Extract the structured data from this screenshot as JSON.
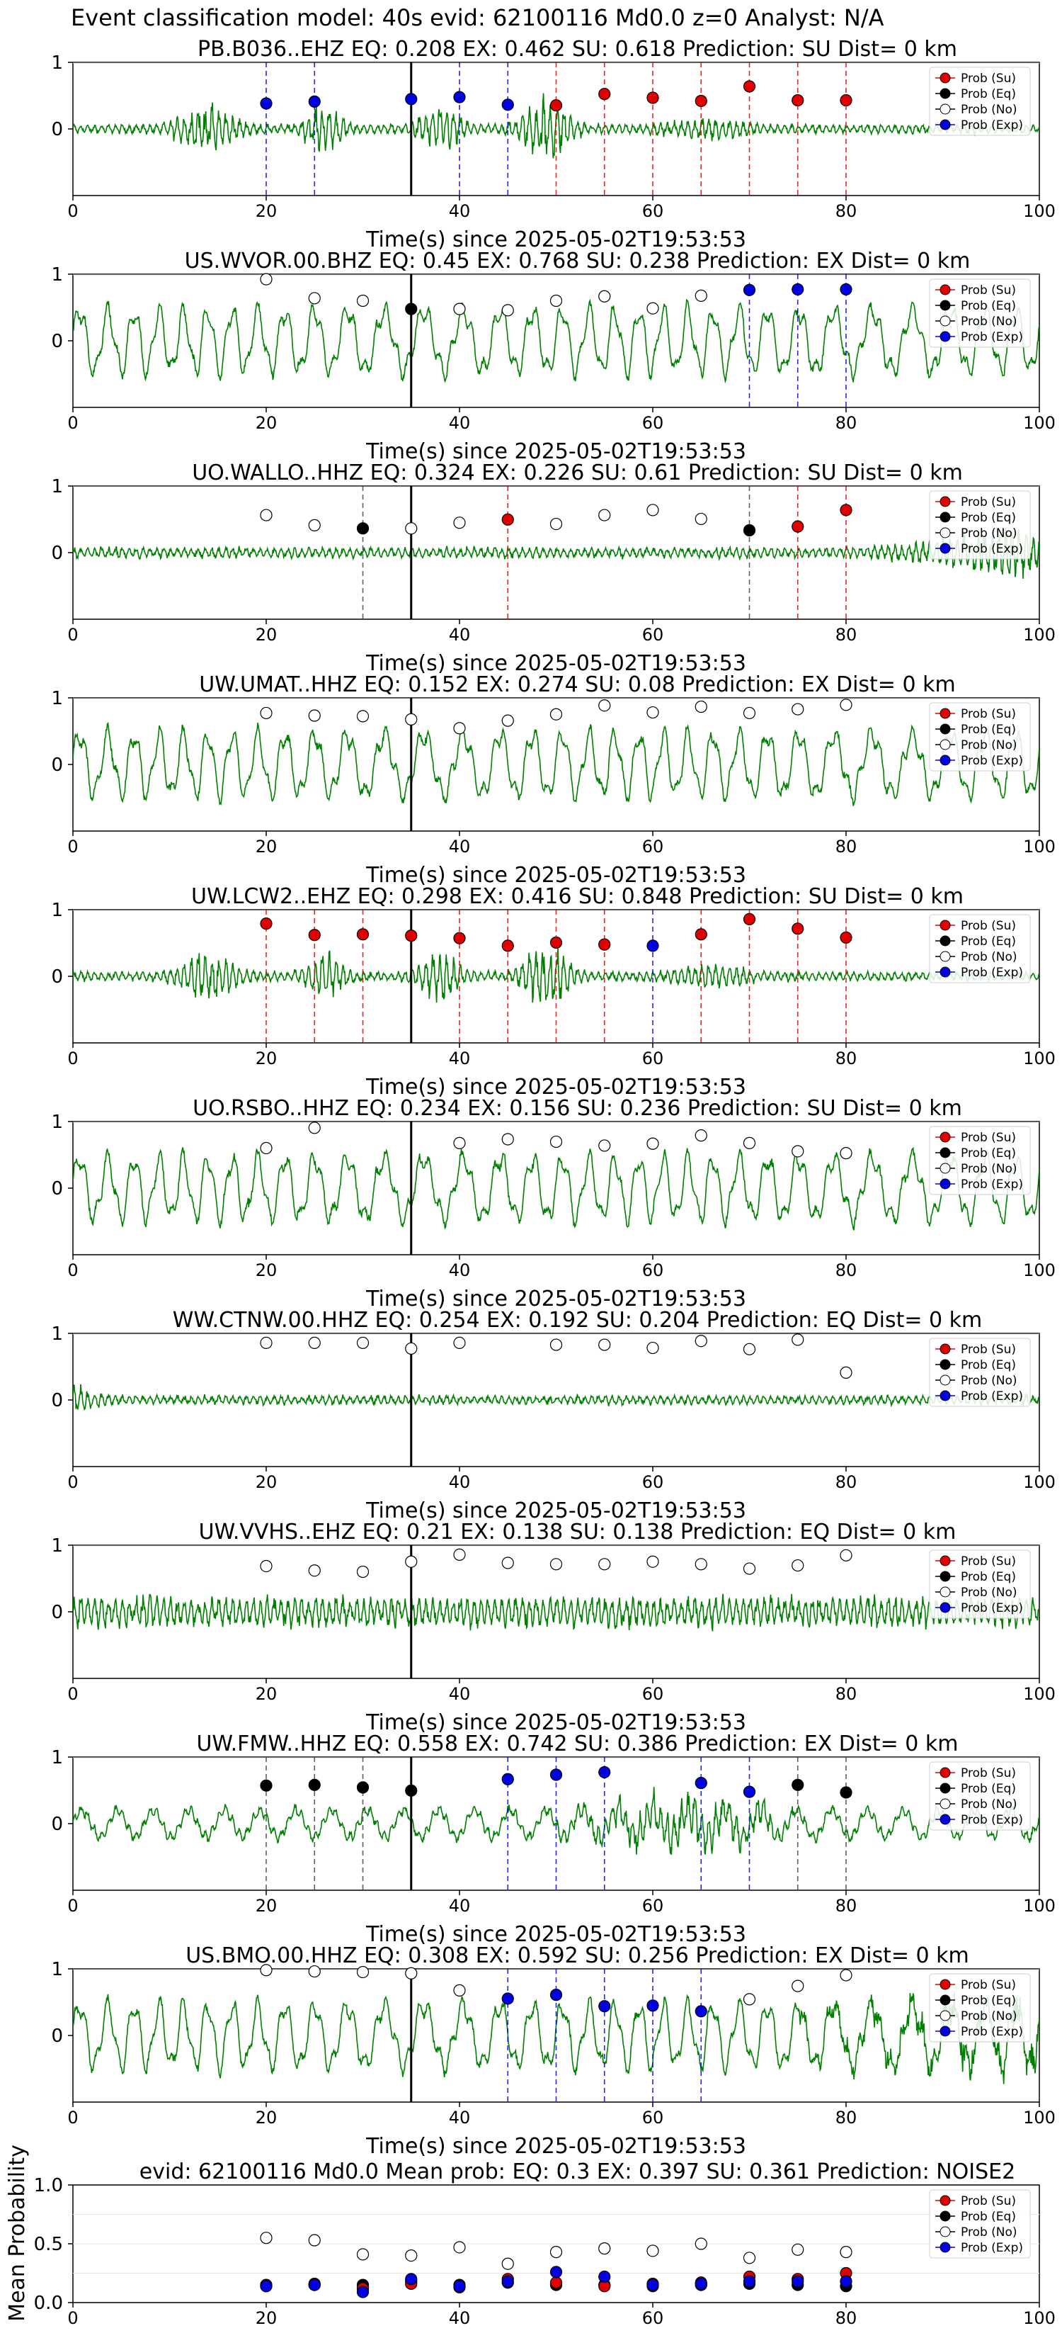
{
  "suptitle": "Event classification model: 40s evid: 62100116 Md0.0 z=0 Analyst: N/A",
  "chart_data": {
    "type": "line",
    "xlabel": "Time(s) since 2025-05-02T19:53:53",
    "xlim": [
      0,
      100
    ],
    "ylim": [
      -1,
      1
    ],
    "xticks": [
      0,
      20,
      40,
      60,
      80,
      100
    ],
    "yticks": [
      0,
      1
    ],
    "arrival_time": 35,
    "window_times": [
      20,
      25,
      30,
      35,
      40,
      45,
      50,
      55,
      60,
      65,
      70,
      75,
      80
    ],
    "legend": {
      "position": "upper right",
      "entries": [
        {
          "key": "su",
          "label": "Prob (Su)",
          "color": "#e00000"
        },
        {
          "key": "eq",
          "label": "Prob (Eq)",
          "color": "#000000"
        },
        {
          "key": "no",
          "label": "Prob (No)",
          "color": "#ffffff"
        },
        {
          "key": "exp",
          "label": "Prob (Exp)",
          "color": "#0000e0"
        }
      ]
    },
    "waveform_color": "#008000",
    "panels": [
      {
        "title": "PB.B036..EHZ   EQ: 0.208  EX: 0.462  SU: 0.618   Prediction: SU    Dist= 0 km",
        "style": "burst",
        "windows": [
          {
            "t": 20,
            "c": "exp",
            "p": 0.35
          },
          {
            "t": 25,
            "c": "exp",
            "p": 0.38
          },
          {
            "t": 35,
            "c": "exp",
            "p": 0.42
          },
          {
            "t": 40,
            "c": "exp",
            "p": 0.45
          },
          {
            "t": 45,
            "c": "exp",
            "p": 0.33
          },
          {
            "t": 50,
            "c": "su",
            "p": 0.32
          },
          {
            "t": 55,
            "c": "su",
            "p": 0.5
          },
          {
            "t": 60,
            "c": "su",
            "p": 0.44
          },
          {
            "t": 65,
            "c": "su",
            "p": 0.39
          },
          {
            "t": 70,
            "c": "su",
            "p": 0.62
          },
          {
            "t": 75,
            "c": "su",
            "p": 0.4
          },
          {
            "t": 80,
            "c": "su",
            "p": 0.4
          }
        ]
      },
      {
        "title": "US.WVOR.00.BHZ   EQ: 0.45  EX: 0.768  SU: 0.238   Prediction: EX    Dist= 0 km",
        "style": "wave",
        "windows": [
          {
            "t": 20,
            "c": "no",
            "p": 0.92
          },
          {
            "t": 25,
            "c": "no",
            "p": 0.62
          },
          {
            "t": 30,
            "c": "no",
            "p": 0.58
          },
          {
            "t": 35,
            "c": "eq",
            "p": 0.45
          },
          {
            "t": 40,
            "c": "no",
            "p": 0.45
          },
          {
            "t": 45,
            "c": "no",
            "p": 0.43
          },
          {
            "t": 50,
            "c": "no",
            "p": 0.58
          },
          {
            "t": 55,
            "c": "no",
            "p": 0.65
          },
          {
            "t": 60,
            "c": "no",
            "p": 0.46
          },
          {
            "t": 65,
            "c": "no",
            "p": 0.66
          },
          {
            "t": 70,
            "c": "exp",
            "p": 0.75
          },
          {
            "t": 75,
            "c": "exp",
            "p": 0.76
          },
          {
            "t": 80,
            "c": "exp",
            "p": 0.76
          }
        ]
      },
      {
        "title": "UO.WALLO..HHZ   EQ: 0.324  EX: 0.226  SU: 0.61   Prediction: SU    Dist= 0 km",
        "style": "noise_end",
        "windows": [
          {
            "t": 20,
            "c": "no",
            "p": 0.54
          },
          {
            "t": 25,
            "c": "no",
            "p": 0.38
          },
          {
            "t": 30,
            "c": "eq",
            "p": 0.33
          },
          {
            "t": 35,
            "c": "no",
            "p": 0.33
          },
          {
            "t": 40,
            "c": "no",
            "p": 0.42
          },
          {
            "t": 45,
            "c": "su",
            "p": 0.47
          },
          {
            "t": 50,
            "c": "no",
            "p": 0.4
          },
          {
            "t": 55,
            "c": "no",
            "p": 0.54
          },
          {
            "t": 60,
            "c": "no",
            "p": 0.62
          },
          {
            "t": 65,
            "c": "no",
            "p": 0.48
          },
          {
            "t": 70,
            "c": "eq",
            "p": 0.3
          },
          {
            "t": 75,
            "c": "su",
            "p": 0.36
          },
          {
            "t": 80,
            "c": "su",
            "p": 0.62
          }
        ]
      },
      {
        "title": "UW.UMAT..HHZ   EQ: 0.152  EX: 0.274  SU: 0.08   Prediction: EX    Dist= 0 km",
        "style": "wave",
        "windows": [
          {
            "t": 20,
            "c": "no",
            "p": 0.76
          },
          {
            "t": 25,
            "c": "no",
            "p": 0.72
          },
          {
            "t": 30,
            "c": "no",
            "p": 0.71
          },
          {
            "t": 35,
            "c": "no",
            "p": 0.66
          },
          {
            "t": 40,
            "c": "no",
            "p": 0.52
          },
          {
            "t": 45,
            "c": "no",
            "p": 0.64
          },
          {
            "t": 50,
            "c": "no",
            "p": 0.74
          },
          {
            "t": 55,
            "c": "no",
            "p": 0.88
          },
          {
            "t": 60,
            "c": "no",
            "p": 0.77
          },
          {
            "t": 65,
            "c": "no",
            "p": 0.86
          },
          {
            "t": 70,
            "c": "no",
            "p": 0.76
          },
          {
            "t": 75,
            "c": "no",
            "p": 0.82
          },
          {
            "t": 80,
            "c": "no",
            "p": 0.89
          }
        ]
      },
      {
        "title": "UW.LCW2..EHZ   EQ: 0.298  EX: 0.416  SU: 0.848   Prediction: SU    Dist= 0 km",
        "style": "burst",
        "windows": [
          {
            "t": 20,
            "c": "su",
            "p": 0.78
          },
          {
            "t": 25,
            "c": "su",
            "p": 0.6
          },
          {
            "t": 30,
            "c": "su",
            "p": 0.61
          },
          {
            "t": 35,
            "c": "su",
            "p": 0.59
          },
          {
            "t": 40,
            "c": "su",
            "p": 0.55
          },
          {
            "t": 45,
            "c": "su",
            "p": 0.43
          },
          {
            "t": 50,
            "c": "su",
            "p": 0.48
          },
          {
            "t": 55,
            "c": "su",
            "p": 0.45
          },
          {
            "t": 60,
            "c": "exp",
            "p": 0.43
          },
          {
            "t": 65,
            "c": "su",
            "p": 0.61
          },
          {
            "t": 70,
            "c": "su",
            "p": 0.85
          },
          {
            "t": 75,
            "c": "su",
            "p": 0.7
          },
          {
            "t": 80,
            "c": "su",
            "p": 0.56
          }
        ]
      },
      {
        "title": "UO.RSBO..HHZ   EQ: 0.234  EX: 0.156  SU: 0.236   Prediction: SU    Dist= 0 km",
        "style": "wave",
        "windows": [
          {
            "t": 20,
            "c": "no",
            "p": 0.58
          },
          {
            "t": 25,
            "c": "no",
            "p": 0.9
          },
          {
            "t": 40,
            "c": "no",
            "p": 0.66
          },
          {
            "t": 45,
            "c": "no",
            "p": 0.72
          },
          {
            "t": 50,
            "c": "no",
            "p": 0.68
          },
          {
            "t": 55,
            "c": "no",
            "p": 0.62
          },
          {
            "t": 60,
            "c": "no",
            "p": 0.65
          },
          {
            "t": 65,
            "c": "no",
            "p": 0.78
          },
          {
            "t": 70,
            "c": "no",
            "p": 0.66
          },
          {
            "t": 75,
            "c": "no",
            "p": 0.53
          },
          {
            "t": 80,
            "c": "no",
            "p": 0.5
          }
        ]
      },
      {
        "title": "WW.CTNW.00.HHZ   EQ: 0.254  EX: 0.192  SU: 0.204   Prediction: EQ    Dist= 0 km",
        "style": "quiet",
        "windows": [
          {
            "t": 20,
            "c": "no",
            "p": 0.85
          },
          {
            "t": 25,
            "c": "no",
            "p": 0.85
          },
          {
            "t": 30,
            "c": "no",
            "p": 0.85
          },
          {
            "t": 35,
            "c": "no",
            "p": 0.76
          },
          {
            "t": 40,
            "c": "no",
            "p": 0.85
          },
          {
            "t": 50,
            "c": "no",
            "p": 0.82
          },
          {
            "t": 55,
            "c": "no",
            "p": 0.82
          },
          {
            "t": 60,
            "c": "no",
            "p": 0.77
          },
          {
            "t": 65,
            "c": "no",
            "p": 0.88
          },
          {
            "t": 70,
            "c": "no",
            "p": 0.75
          },
          {
            "t": 75,
            "c": "no",
            "p": 0.9
          },
          {
            "t": 80,
            "c": "no",
            "p": 0.38
          }
        ]
      },
      {
        "title": "UW.VVHS..EHZ   EQ: 0.21  EX: 0.138  SU: 0.138   Prediction: EQ    Dist= 0 km",
        "style": "dense",
        "windows": [
          {
            "t": 20,
            "c": "no",
            "p": 0.67
          },
          {
            "t": 25,
            "c": "no",
            "p": 0.6
          },
          {
            "t": 30,
            "c": "no",
            "p": 0.58
          },
          {
            "t": 35,
            "c": "no",
            "p": 0.74
          },
          {
            "t": 40,
            "c": "no",
            "p": 0.85
          },
          {
            "t": 45,
            "c": "no",
            "p": 0.72
          },
          {
            "t": 50,
            "c": "no",
            "p": 0.7
          },
          {
            "t": 55,
            "c": "no",
            "p": 0.7
          },
          {
            "t": 60,
            "c": "no",
            "p": 0.74
          },
          {
            "t": 65,
            "c": "no",
            "p": 0.7
          },
          {
            "t": 70,
            "c": "no",
            "p": 0.63
          },
          {
            "t": 75,
            "c": "no",
            "p": 0.68
          },
          {
            "t": 80,
            "c": "no",
            "p": 0.84
          }
        ]
      },
      {
        "title": "UW.FMW..HHZ   EQ: 0.558  EX: 0.742  SU: 0.386   Prediction: EX    Dist= 0 km",
        "style": "burst2",
        "windows": [
          {
            "t": 20,
            "c": "eq",
            "p": 0.55
          },
          {
            "t": 25,
            "c": "eq",
            "p": 0.56
          },
          {
            "t": 30,
            "c": "eq",
            "p": 0.52
          },
          {
            "t": 35,
            "c": "eq",
            "p": 0.47
          },
          {
            "t": 45,
            "c": "exp",
            "p": 0.65
          },
          {
            "t": 50,
            "c": "exp",
            "p": 0.72
          },
          {
            "t": 55,
            "c": "exp",
            "p": 0.76
          },
          {
            "t": 65,
            "c": "exp",
            "p": 0.59
          },
          {
            "t": 70,
            "c": "exp",
            "p": 0.45
          },
          {
            "t": 75,
            "c": "eq",
            "p": 0.56
          },
          {
            "t": 80,
            "c": "eq",
            "p": 0.44
          }
        ]
      },
      {
        "title": "US.BMO.00.HHZ   EQ: 0.308  EX: 0.592  SU: 0.256   Prediction: EX    Dist= 0 km",
        "style": "wave_end",
        "windows": [
          {
            "t": 20,
            "c": "no",
            "p": 0.98
          },
          {
            "t": 25,
            "c": "no",
            "p": 0.96
          },
          {
            "t": 30,
            "c": "no",
            "p": 0.95
          },
          {
            "t": 35,
            "c": "no",
            "p": 0.93
          },
          {
            "t": 40,
            "c": "no",
            "p": 0.66
          },
          {
            "t": 45,
            "c": "exp",
            "p": 0.53
          },
          {
            "t": 50,
            "c": "exp",
            "p": 0.59
          },
          {
            "t": 55,
            "c": "exp",
            "p": 0.41
          },
          {
            "t": 60,
            "c": "exp",
            "p": 0.42
          },
          {
            "t": 65,
            "c": "exp",
            "p": 0.33
          },
          {
            "t": 70,
            "c": "no",
            "p": 0.52
          },
          {
            "t": 75,
            "c": "no",
            "p": 0.73
          },
          {
            "t": 80,
            "c": "no",
            "p": 0.9
          }
        ]
      }
    ],
    "summary": {
      "title": "evid: 62100116  Md0.0   Mean prob:   EQ: 0.3  EX: 0.397  SU: 0.361   Prediction: NOISE2",
      "ylabel": "Mean Probability",
      "ylim": [
        0,
        1
      ],
      "yticks": [
        "0.0",
        "0.5",
        "1.0"
      ],
      "x": [
        20,
        25,
        30,
        35,
        40,
        45,
        50,
        55,
        60,
        65,
        70,
        75,
        80
      ],
      "series": [
        {
          "key": "no",
          "values": [
            0.55,
            0.53,
            0.41,
            0.4,
            0.47,
            0.33,
            0.43,
            0.46,
            0.44,
            0.5,
            0.38,
            0.45,
            0.43
          ]
        },
        {
          "key": "eq",
          "values": [
            0.14,
            0.15,
            0.15,
            0.18,
            0.15,
            0.17,
            0.15,
            0.15,
            0.14,
            0.15,
            0.16,
            0.15,
            0.14
          ]
        },
        {
          "key": "su",
          "values": [
            0.15,
            0.16,
            0.12,
            0.16,
            0.13,
            0.2,
            0.17,
            0.14,
            0.16,
            0.17,
            0.22,
            0.2,
            0.25
          ]
        },
        {
          "key": "exp",
          "values": [
            0.14,
            0.15,
            0.09,
            0.2,
            0.14,
            0.18,
            0.26,
            0.22,
            0.15,
            0.16,
            0.18,
            0.18,
            0.18
          ]
        }
      ]
    }
  }
}
